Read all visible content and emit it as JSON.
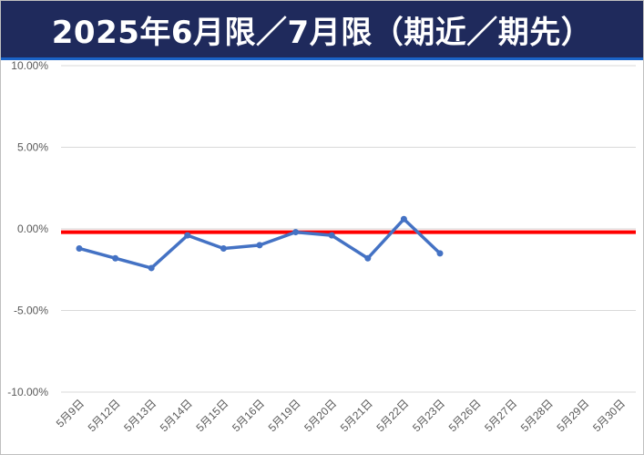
{
  "title": "2025年6月限／7月限（期近／期先）",
  "chart_data": {
    "type": "line",
    "title": "2025年6月限／7月限（期近／期先）",
    "categories": [
      "5月9日",
      "5月12日",
      "5月13日",
      "5月14日",
      "5月15日",
      "5月16日",
      "5月19日",
      "5月20日",
      "5月21日",
      "5月22日",
      "5月23日",
      "5月26日",
      "5月27日",
      "5月28日",
      "5月29日",
      "5月30日"
    ],
    "series": [
      {
        "color": "#4472c4",
        "values": [
          -1.2,
          -1.8,
          -2.4,
          -0.4,
          -1.2,
          -1.0,
          -0.2,
          -0.4,
          -1.8,
          0.6,
          -1.5,
          null,
          null,
          null,
          null,
          null
        ]
      }
    ],
    "reference_line": {
      "value": -0.2,
      "color": "#ff0000"
    },
    "y_ticks": [
      "10.00%",
      "5.00%",
      "0.00%",
      "-5.00%",
      "-10.00%"
    ],
    "ylim": [
      -10,
      10
    ],
    "grid": true,
    "legend": "none"
  }
}
